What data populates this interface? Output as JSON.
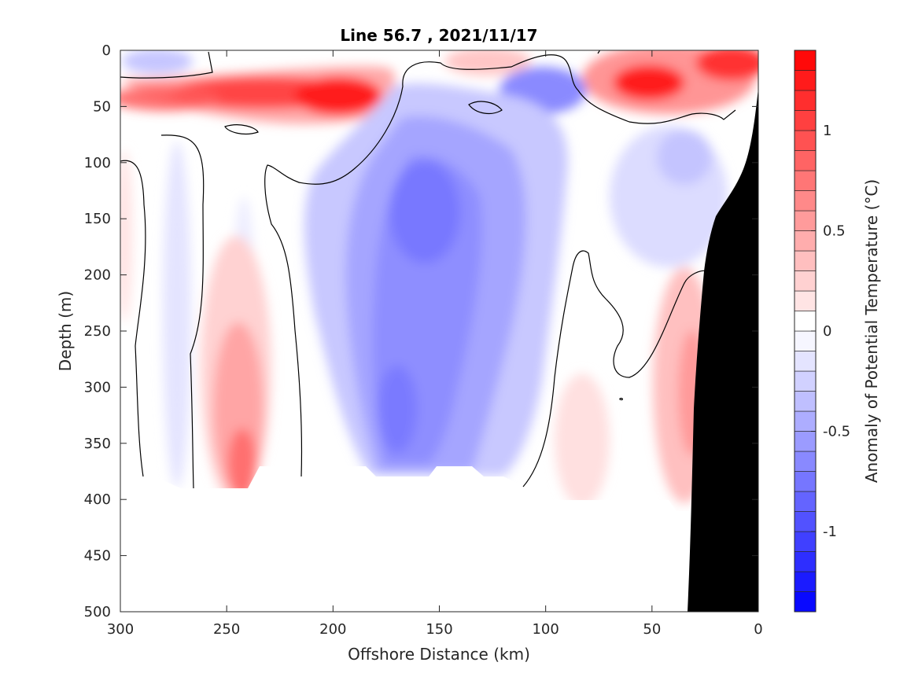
{
  "chart_data": {
    "type": "heatmap",
    "title": "Line 56.7 , 2021/11/17",
    "xlabel": "Offshore Distance (km)",
    "ylabel": "Depth (m)",
    "colorbar_label": "Anomaly of Potential Temperature (°C)",
    "xlim": [
      300,
      0
    ],
    "ylim": [
      0,
      500
    ],
    "x_ticks": [
      300,
      250,
      200,
      150,
      100,
      50,
      0
    ],
    "y_ticks": [
      0,
      50,
      100,
      150,
      200,
      250,
      300,
      350,
      400,
      450,
      500
    ],
    "colorbar_range": [
      -1.4,
      1.4
    ],
    "colorbar_ticks": [
      {
        "value": 1,
        "label": "1"
      },
      {
        "value": 0.5,
        "label": "0.5"
      },
      {
        "value": 0,
        "label": "0"
      },
      {
        "value": -0.5,
        "label": "-0.5"
      },
      {
        "value": -1,
        "label": "-1"
      }
    ],
    "colors": {
      "warm": "#ff0000",
      "cold": "#0000ff",
      "neutral": "#ffffff",
      "bathymetry": "#000000"
    },
    "features": [
      {
        "kind": "warm",
        "x": 215,
        "y": 38,
        "value": 1.2
      },
      {
        "kind": "warm",
        "x": 197,
        "y": 42,
        "value": 1.3
      },
      {
        "kind": "warm",
        "x": 50,
        "y": 28,
        "value": 1.3
      },
      {
        "kind": "warm",
        "x": 15,
        "y": 12,
        "value": 1.0
      },
      {
        "kind": "warm",
        "x": 240,
        "y": 360,
        "value": 0.7
      },
      {
        "kind": "warm",
        "x": 30,
        "y": 300,
        "value": 0.5
      },
      {
        "kind": "cold",
        "x": 283,
        "y": 10,
        "value": -0.4
      },
      {
        "kind": "cold",
        "x": 100,
        "y": 40,
        "value": -0.6
      },
      {
        "kind": "cold",
        "x": 155,
        "y": 160,
        "value": -0.7
      },
      {
        "kind": "cold",
        "x": 165,
        "y": 300,
        "value": -0.6
      }
    ]
  }
}
